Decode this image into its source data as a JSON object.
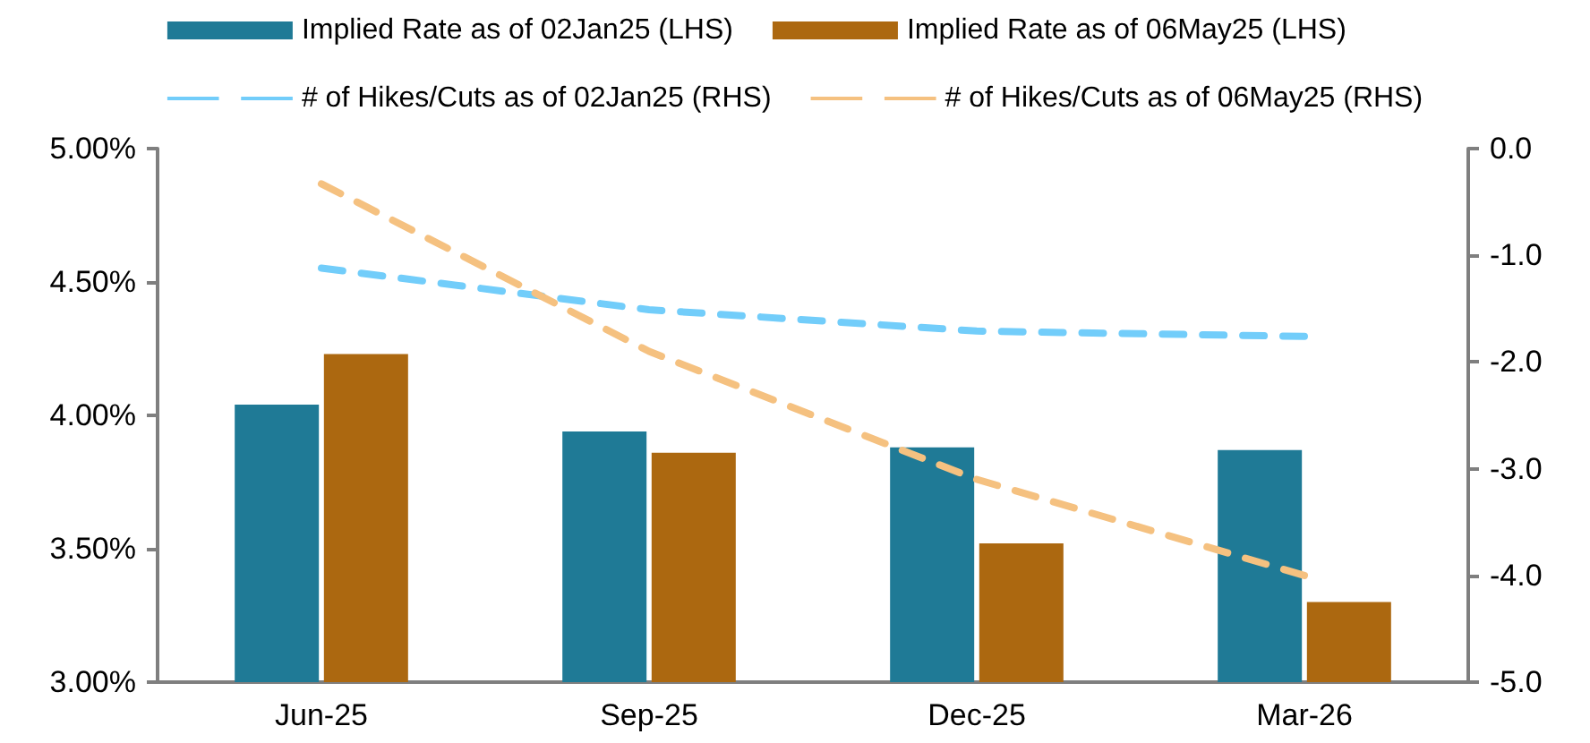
{
  "chart_data": {
    "type": "bar",
    "categories": [
      "Jun-25",
      "Sep-25",
      "Dec-25",
      "Mar-26"
    ],
    "series": [
      {
        "name": "Implied Rate as of 02Jan25 (LHS)",
        "color": "#1f7a96",
        "values": [
          4.04,
          3.94,
          3.88,
          3.87
        ]
      },
      {
        "name": "Implied Rate as of 06May25 (LHS)",
        "color": "#ac6810",
        "values": [
          4.23,
          3.86,
          3.52,
          3.3
        ]
      },
      {
        "name": "# of Hikes/Cuts as of 02Jan25 (RHS)",
        "type": "line",
        "axis": "y2",
        "line_style": "dashed",
        "color": "#72cdfa",
        "values": [
          -1.12,
          -1.51,
          -1.71,
          -1.76
        ]
      },
      {
        "name": "# of Hikes/Cuts as of 06May25 (RHS)",
        "type": "line",
        "axis": "y2",
        "line_style": "dashed",
        "color": "#f5c180",
        "values": [
          -0.33,
          -1.9,
          -3.1,
          -4.0
        ]
      }
    ],
    "ylim": [
      3,
      5
    ],
    "yticks": [
      {
        "value": 3,
        "label": "3.00%"
      },
      {
        "value": 3.5,
        "label": "3.50%"
      },
      {
        "value": 4,
        "label": "4.00%"
      },
      {
        "value": 4.5,
        "label": "4.50%"
      },
      {
        "value": 5,
        "label": "5.00%"
      }
    ],
    "y2lim": [
      -5,
      0
    ],
    "y2ticks": [
      {
        "value": -5,
        "label": "-5.0"
      },
      {
        "value": -4,
        "label": "-4.0"
      },
      {
        "value": -3,
        "label": "-3.0"
      },
      {
        "value": -2,
        "label": "-2.0"
      },
      {
        "value": -1,
        "label": "-1.0"
      },
      {
        "value": 0,
        "label": "0.0"
      }
    ],
    "legend": "top",
    "grid": false,
    "marker": "none"
  }
}
